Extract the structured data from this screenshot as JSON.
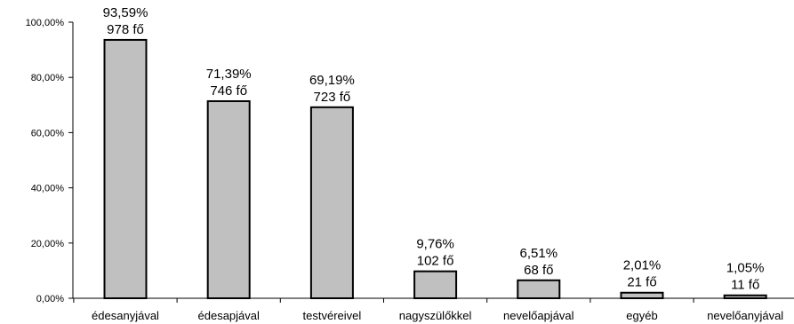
{
  "chart_data": {
    "type": "bar",
    "title": "",
    "xlabel": "",
    "ylabel": "",
    "ylim": [
      0,
      100
    ],
    "yticks": [
      0,
      20,
      40,
      60,
      80,
      100
    ],
    "ytick_labels": [
      "0,00%",
      "20,00%",
      "40,00%",
      "60,00%",
      "80,00%",
      "100,00%"
    ],
    "grid": false,
    "bar_color": "#c0c0c0",
    "bar_edge_color": "#000000",
    "categories": [
      "édesanyjával",
      "édesapjával",
      "testvéreivel",
      "nagyszülőkkel",
      "nevelőapjával",
      "egyéb",
      "nevelőanyjával"
    ],
    "values": [
      93.59,
      71.39,
      69.19,
      9.76,
      6.51,
      2.01,
      1.05
    ],
    "percent_labels": [
      "93,59%",
      "71,39%",
      "69,19%",
      "9,76%",
      "6,51%",
      "2,01%",
      "1,05%"
    ],
    "count_labels": [
      "978 fő",
      "746 fő",
      "723 fő",
      "102 fő",
      "68 fő",
      "21 fő",
      "11 fő"
    ]
  }
}
